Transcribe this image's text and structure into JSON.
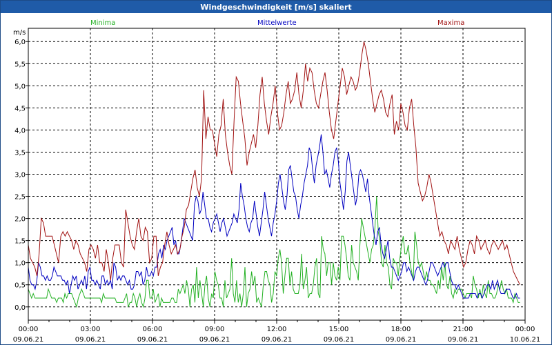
{
  "title": "Windgeschwindigkeit [m/s] skaliert",
  "colors": {
    "header_bg": "#1f5ba8",
    "minima": "#22b022",
    "mittelwerte": "#0000c0",
    "maxima": "#a01010"
  },
  "chart_data": {
    "type": "line",
    "title": "Windgeschwindigkeit [m/s] skaliert",
    "ylabel": "m/s",
    "ylim": [
      -0.3,
      6.3
    ],
    "y_ticks": [
      "0,0",
      "0,5",
      "1,0",
      "1,5",
      "2,0",
      "2,5",
      "3,0",
      "3,5",
      "4,0",
      "4,5",
      "5,0",
      "5,5",
      "6,0"
    ],
    "x_range_hours": [
      0,
      24
    ],
    "x_ticks": [
      {
        "time": "00:00",
        "date": "09.06.21"
      },
      {
        "time": "03:00",
        "date": "09.06.21"
      },
      {
        "time": "06:00",
        "date": "09.06.21"
      },
      {
        "time": "09:00",
        "date": "09.06.21"
      },
      {
        "time": "12:00",
        "date": "09.06.21"
      },
      {
        "time": "15:00",
        "date": "09.06.21"
      },
      {
        "time": "18:00",
        "date": "09.06.21"
      },
      {
        "time": "21:00",
        "date": "09.06.21"
      },
      {
        "time": "00:00",
        "date": "10.06.21"
      }
    ],
    "grid": true,
    "series": [
      {
        "name": "Minima",
        "color": "#22b022",
        "values": [
          0.4,
          0.3,
          0.2,
          0.3,
          0.2,
          0.2,
          0.2,
          0.2,
          0.2,
          0.2,
          0.2,
          0.2,
          0.4,
          0.3,
          0.2,
          0.2,
          0.2,
          0.1,
          0.2,
          0.2,
          0.2,
          0.1,
          0.3,
          0.2,
          0.3,
          0.3,
          0.3,
          0.2,
          0.1,
          0.0,
          0.2,
          0.3,
          0.4,
          0.3,
          0.2,
          0.2,
          0.2,
          0.2,
          0.2,
          0.2,
          0.2,
          0.2,
          0.2,
          0.2,
          0.1,
          0.3,
          0.2,
          0.2,
          0.2,
          0.2,
          0.2,
          0.2,
          0.2,
          0.1,
          0.1,
          0.1,
          0.1,
          0.1,
          0.2,
          0.3,
          0.0,
          0.1,
          0.1,
          0.3,
          0.2,
          0.0,
          0.2,
          0.3,
          0.1,
          0.0,
          0.2,
          0.6,
          0.6,
          0.2,
          0.2,
          0.4,
          0.1,
          0.2,
          0.3,
          0.0,
          0.2,
          0.1,
          0.1,
          0.1,
          0.1,
          0.1,
          0.2,
          0.2,
          0.1,
          0.1,
          0.4,
          0.3,
          0.4,
          0.5,
          0.3,
          0.6,
          0.4,
          0.0,
          0.4,
          0.5,
          0.1,
          0.9,
          0.2,
          0.6,
          0.3,
          0.0,
          0.5,
          0.7,
          0.2,
          0.0,
          0.3,
          0.2,
          0.8,
          0.6,
          0.5,
          0.2,
          0.2,
          0.0,
          0.6,
          0.2,
          0.3,
          0.4,
          1.1,
          0.3,
          0.1,
          0.6,
          0.1,
          0.3,
          0.0,
          0.3,
          0.9,
          0.0,
          0.3,
          0.4,
          0.8,
          0.5,
          0.7,
          0.1,
          0.2,
          0.1,
          0.0,
          0.5,
          0.8,
          0.8,
          0.6,
          0.5,
          0.1,
          0.3,
          0.8,
          0.7,
          1.1,
          1.3,
          1.0,
          0.3,
          0.7,
          1.1,
          1.1,
          0.5,
          0.8,
          0.4,
          0.3,
          0.3,
          0.3,
          0.5,
          1.2,
          0.4,
          0.6,
          0.9,
          0.2,
          0.3,
          0.3,
          0.5,
          0.9,
          1.1,
          0.3,
          0.2,
          1.6,
          1.3,
          1.2,
          0.7,
          1.0,
          1.0,
          0.5,
          1.0,
          0.7,
          0.6,
          0.9,
          0.6,
          1.6,
          1.6,
          1.4,
          1.1,
          0.7,
          0.6,
          1.4,
          1.0,
          0.9,
          0.8,
          0.6,
          1.4,
          2.0,
          1.8,
          1.6,
          1.4,
          1.2,
          1.0,
          1.3,
          1.4,
          1.8,
          2.5,
          1.7,
          1.5,
          1.0,
          0.9,
          1.4,
          1.0,
          0.9,
          0.5,
          0.4,
          1.1,
          1.0,
          1.0,
          0.7,
          1.1,
          1.4,
          1.6,
          1.2,
          1.2,
          1.4,
          1.0,
          0.8,
          0.6,
          1.7,
          1.4,
          1.0,
          0.9,
          1.0,
          0.8,
          0.6,
          0.8,
          0.6,
          0.6,
          0.5,
          0.5,
          0.4,
          0.3,
          0.6,
          0.4,
          0.9,
          0.6,
          1.0,
          0.5,
          0.4,
          0.7,
          0.3,
          0.2,
          0.4,
          0.3,
          0.4,
          0.4,
          0.4,
          0.3,
          0.2,
          0.3,
          0.3,
          0.3,
          0.2,
          0.7,
          0.5,
          0.4,
          0.2,
          0.4,
          0.2,
          0.5,
          0.3,
          0.2,
          0.6,
          0.3,
          0.3,
          0.2,
          0.2,
          0.3,
          0.5,
          0.4,
          0.6,
          0.4,
          0.3,
          0.4,
          0.2,
          0.2,
          0.2,
          0.1,
          0.3,
          0.2,
          0.1,
          0.1
        ]
      },
      {
        "name": "Mittelwerte",
        "color": "#0000c0",
        "values": [
          0.9,
          0.6,
          0.5,
          0.5,
          0.4,
          0.6,
          1.0,
          0.9,
          0.7,
          0.7,
          0.6,
          0.7,
          0.6,
          0.6,
          0.7,
          0.9,
          0.8,
          0.7,
          0.7,
          0.7,
          0.6,
          0.6,
          0.5,
          0.6,
          0.3,
          0.5,
          0.7,
          0.6,
          0.7,
          0.4,
          0.5,
          0.6,
          0.5,
          0.7,
          0.4,
          0.8,
          0.9,
          0.6,
          0.6,
          0.5,
          0.6,
          0.5,
          0.4,
          0.7,
          0.7,
          0.5,
          0.6,
          0.5,
          0.6,
          0.4,
          1.0,
          0.9,
          0.6,
          0.7,
          0.6,
          0.7,
          0.7,
          0.6,
          0.5,
          0.6,
          0.4,
          0.4,
          0.5,
          0.8,
          0.8,
          0.7,
          0.8,
          0.5,
          0.6,
          0.9,
          0.7,
          0.7,
          0.8,
          0.7,
          0.9,
          0.9,
          1.2,
          1.3,
          1.1,
          1.4,
          1.3,
          1.5,
          1.6,
          1.7,
          1.8,
          1.4,
          1.5,
          1.2,
          1.2,
          1.4,
          1.7,
          2.0,
          1.9,
          1.8,
          1.7,
          1.6,
          1.5,
          2.3,
          2.5,
          2.4,
          2.1,
          2.2,
          2.6,
          2.3,
          2.0,
          2.0,
          1.8,
          1.7,
          1.9,
          2.0,
          2.1,
          1.9,
          1.7,
          1.9,
          2.0,
          1.8,
          1.6,
          1.7,
          1.8,
          1.9,
          2.1,
          2.0,
          1.9,
          2.2,
          2.8,
          2.5,
          2.3,
          2.0,
          1.8,
          1.7,
          1.9,
          2.0,
          2.4,
          2.1,
          1.8,
          1.6,
          1.9,
          2.2,
          2.6,
          2.3,
          2.0,
          1.8,
          1.6,
          1.9,
          2.1,
          2.4,
          2.8,
          3.0,
          2.7,
          2.4,
          2.2,
          2.5,
          3.1,
          3.2,
          2.9,
          2.6,
          2.5,
          2.2,
          2.0,
          2.3,
          2.5,
          2.8,
          3.0,
          3.2,
          3.6,
          3.5,
          3.1,
          2.8,
          3.2,
          3.4,
          3.6,
          3.9,
          3.5,
          3.0,
          3.1,
          2.9,
          2.7,
          3.0,
          3.2,
          3.5,
          3.6,
          3.3,
          2.8,
          2.5,
          2.2,
          2.6,
          3.3,
          3.5,
          3.2,
          2.9,
          2.6,
          2.3,
          2.5,
          3.0,
          3.1,
          3.0,
          2.8,
          2.6,
          2.9,
          2.5,
          2.2,
          1.9,
          1.6,
          1.4,
          1.7,
          1.8,
          1.4,
          1.2,
          1.1,
          1.3,
          1.5,
          1.1,
          0.9,
          0.9,
          0.8,
          0.7,
          0.6,
          0.7,
          0.8,
          1.0,
          1.0,
          0.8,
          0.9,
          0.8,
          0.7,
          0.6,
          0.8,
          0.9,
          0.9,
          0.8,
          0.7,
          0.6,
          0.5,
          0.6,
          0.8,
          1.0,
          1.0,
          0.9,
          0.8,
          0.7,
          0.8,
          0.9,
          1.0,
          0.9,
          1.0,
          1.0,
          0.8,
          0.6,
          0.5,
          0.5,
          0.4,
          0.5,
          0.4,
          0.3,
          0.2,
          0.2,
          0.2,
          0.2,
          0.3,
          0.3,
          0.3,
          0.3,
          0.2,
          0.3,
          0.3,
          0.2,
          0.3,
          0.4,
          0.5,
          0.5,
          0.4,
          0.6,
          0.4,
          0.5,
          0.6,
          0.4,
          0.3,
          0.3,
          0.3,
          0.4,
          0.4,
          0.4,
          0.3,
          0.2,
          0.2,
          0.3,
          0.2,
          0.2
        ]
      },
      {
        "name": "Maxima",
        "color": "#a01010",
        "values": [
          1.4,
          1.1,
          1.0,
          0.9,
          0.7,
          1.2,
          2.0,
          1.9,
          1.6,
          1.6,
          1.6,
          1.6,
          1.4,
          1.2,
          1.0,
          1.6,
          1.7,
          1.6,
          1.7,
          1.6,
          1.5,
          1.3,
          1.5,
          1.4,
          1.2,
          1.1,
          1.0,
          0.8,
          1.3,
          1.4,
          1.3,
          1.1,
          1.4,
          1.0,
          1.0,
          0.8,
          1.3,
          1.0,
          0.6,
          1.1,
          1.4,
          1.4,
          1.4,
          1.0,
          0.9,
          2.2,
          1.9,
          1.6,
          1.4,
          1.3,
          1.7,
          2.0,
          1.6,
          1.5,
          1.8,
          1.7,
          1.0,
          1.1,
          1.6,
          1.6,
          0.7,
          0.9,
          1.0,
          1.4,
          1.7,
          1.4,
          1.2,
          1.3,
          1.4,
          1.2,
          1.3,
          1.6,
          1.8,
          2.2,
          2.3,
          2.6,
          2.9,
          3.1,
          2.7,
          2.5,
          2.9,
          4.9,
          3.8,
          4.3,
          4.0,
          4.0,
          3.7,
          3.4,
          3.9,
          4.1,
          4.7,
          3.9,
          3.5,
          3.2,
          3.0,
          4.2,
          5.2,
          5.1,
          4.6,
          4.2,
          3.8,
          3.2,
          3.5,
          3.7,
          3.9,
          3.6,
          4.1,
          4.8,
          5.2,
          4.6,
          4.2,
          3.9,
          4.3,
          4.6,
          5.0,
          4.4,
          4.0,
          4.1,
          4.4,
          4.8,
          5.1,
          4.6,
          4.7,
          4.9,
          5.3,
          4.8,
          4.5,
          4.9,
          5.5,
          5.1,
          5.4,
          5.3,
          4.9,
          4.6,
          4.5,
          4.8,
          5.1,
          5.3,
          4.9,
          4.4,
          4.0,
          3.8,
          4.2,
          4.6,
          5.0,
          5.4,
          5.2,
          4.8,
          5.0,
          5.2,
          5.1,
          4.9,
          5.0,
          5.3,
          5.7,
          6.0,
          5.8,
          5.5,
          5.1,
          4.7,
          4.4,
          4.6,
          4.8,
          4.9,
          4.7,
          4.4,
          4.3,
          4.6,
          4.8,
          3.9,
          4.2,
          4.0,
          4.6,
          4.4,
          4.1,
          4.0,
          4.5,
          4.7,
          4.1,
          3.6,
          2.8,
          2.6,
          2.4,
          2.5,
          2.7,
          3.0,
          2.8,
          2.5,
          2.2,
          1.9,
          1.6,
          1.7,
          1.5,
          1.4,
          1.2,
          1.5,
          1.4,
          1.3,
          1.6,
          1.3,
          1.1,
          0.9,
          1.0,
          1.3,
          1.5,
          1.4,
          1.2,
          1.6,
          1.5,
          1.3,
          1.4,
          1.5,
          1.3,
          1.2,
          1.4,
          1.5,
          1.4,
          1.3,
          1.4,
          1.5,
          1.3,
          1.4,
          1.2,
          1.0,
          0.8,
          0.7,
          0.6,
          0.5
        ]
      }
    ]
  }
}
